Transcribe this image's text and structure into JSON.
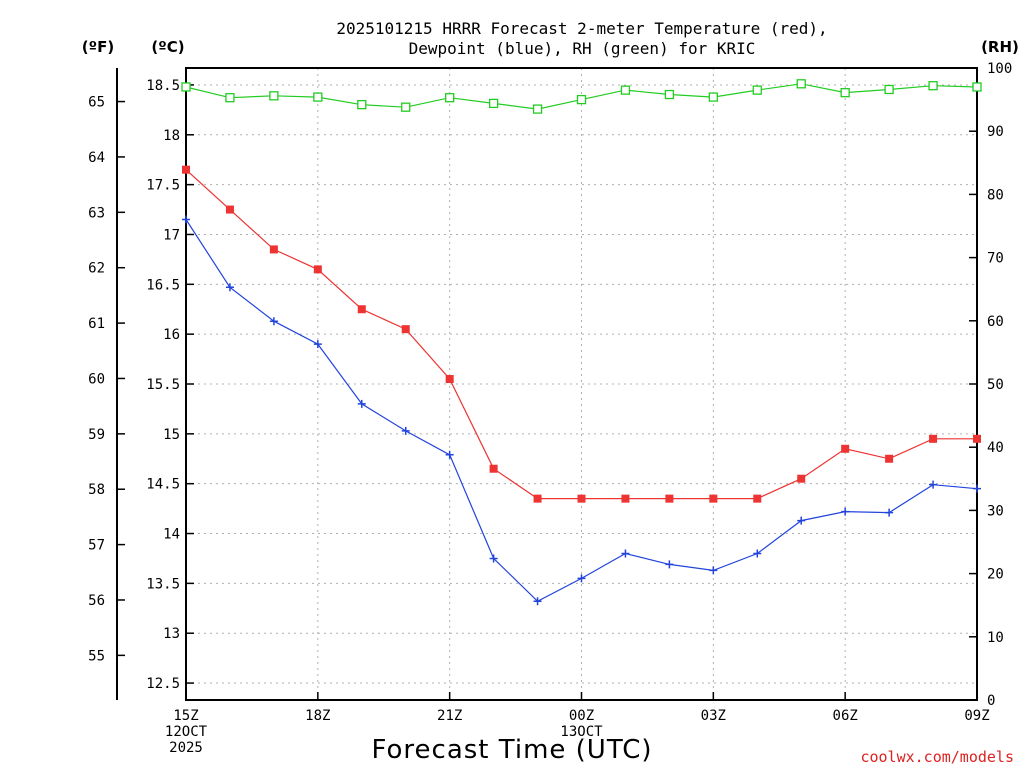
{
  "chart_data": {
    "type": "line",
    "title_lines": [
      "2025101215 HRRR Forecast 2-meter Temperature (red),",
      "Dewpoint (blue), RH (green) for KRIC"
    ],
    "unit_labels": {
      "fahrenheit": "(ºF)",
      "celsius": "(ºC)",
      "rh": "(RH)"
    },
    "xlabel": "Forecast Time (UTC)",
    "credit": "coolwx.com/models",
    "x_range": [
      0,
      18
    ],
    "x_ticks": [
      {
        "x": 0,
        "lines": [
          "15Z",
          "12OCT",
          "2025"
        ]
      },
      {
        "x": 3,
        "lines": [
          "18Z"
        ]
      },
      {
        "x": 6,
        "lines": [
          "21Z"
        ]
      },
      {
        "x": 9,
        "lines": [
          "00Z",
          "13OCT"
        ]
      },
      {
        "x": 12,
        "lines": [
          "03Z"
        ]
      },
      {
        "x": 15,
        "lines": [
          "06Z"
        ]
      },
      {
        "x": 18,
        "lines": [
          "09Z"
        ]
      }
    ],
    "celsius_axis": {
      "range": [
        12.33,
        18.67
      ],
      "ticks": [
        "12.5",
        "13",
        "13.5",
        "14",
        "14.5",
        "15",
        "15.5",
        "16",
        "16.5",
        "17",
        "17.5",
        "18",
        "18.5"
      ]
    },
    "fahrenheit_ticks": [
      "55",
      "56",
      "57",
      "58",
      "59",
      "60",
      "61",
      "62",
      "63",
      "64",
      "65"
    ],
    "rh_axis": {
      "range": [
        0,
        100
      ],
      "ticks": [
        "0",
        "10",
        "20",
        "30",
        "40",
        "50",
        "60",
        "70",
        "80",
        "90",
        "100"
      ]
    },
    "series": [
      {
        "name": "Temperature",
        "color": "#ee3333",
        "marker": "filled-square",
        "axis": "celsius",
        "x": [
          0,
          1,
          2,
          3,
          4,
          5,
          6,
          7,
          8,
          9,
          10,
          11,
          12,
          13,
          14,
          15,
          16,
          17,
          18
        ],
        "values": [
          17.65,
          17.25,
          16.85,
          16.65,
          16.25,
          16.05,
          15.55,
          14.65,
          14.35,
          14.35,
          14.35,
          14.35,
          14.35,
          14.35,
          14.55,
          14.85,
          14.75,
          14.95,
          14.95
        ]
      },
      {
        "name": "Dewpoint",
        "color": "#2244dd",
        "marker": "plus",
        "axis": "celsius",
        "x": [
          0,
          1,
          2,
          3,
          4,
          5,
          6,
          7,
          8,
          9,
          10,
          11,
          12,
          13,
          14,
          15,
          16,
          17,
          18
        ],
        "values": [
          17.15,
          16.47,
          16.13,
          15.9,
          15.3,
          15.03,
          14.79,
          13.75,
          13.32,
          13.55,
          13.8,
          13.69,
          13.63,
          13.8,
          14.13,
          14.22,
          14.21,
          14.49,
          14.45
        ]
      },
      {
        "name": "RH",
        "color": "#22cc22",
        "marker": "open-square",
        "axis": "rh",
        "x": [
          0,
          1,
          2,
          3,
          4,
          5,
          6,
          7,
          8,
          9,
          10,
          11,
          12,
          13,
          14,
          15,
          16,
          17,
          18
        ],
        "values": [
          97,
          95.3,
          95.6,
          95.4,
          94.2,
          93.8,
          95.3,
          94.4,
          93.5,
          95,
          96.5,
          95.8,
          95.4,
          96.5,
          97.5,
          96.1,
          96.6,
          97.2,
          97
        ]
      }
    ]
  }
}
